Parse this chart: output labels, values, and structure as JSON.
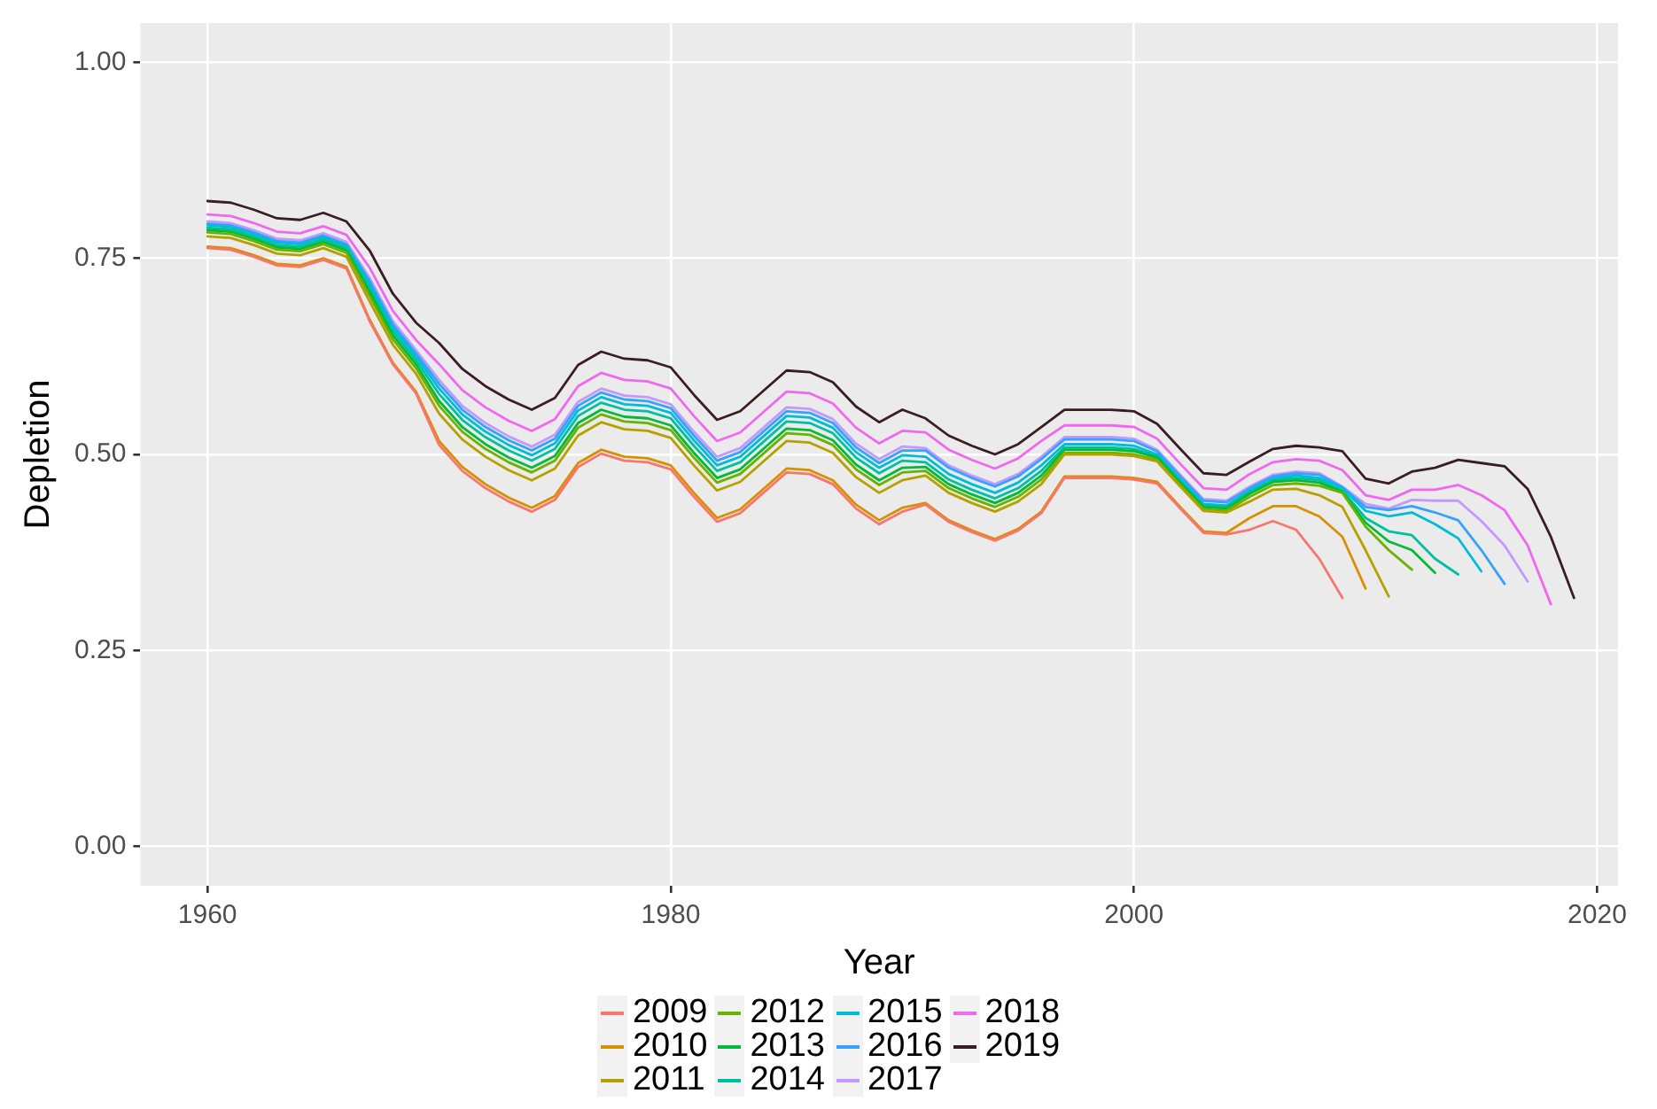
{
  "chart_data": {
    "type": "line",
    "xlabel": "Year",
    "ylabel": "Depletion",
    "x": [
      1960,
      1961,
      1962,
      1963,
      1964,
      1965,
      1966,
      1967,
      1968,
      1969,
      1970,
      1971,
      1972,
      1973,
      1974,
      1975,
      1976,
      1977,
      1978,
      1979,
      1980,
      1981,
      1982,
      1983,
      1984,
      1985,
      1986,
      1987,
      1988,
      1989,
      1990,
      1991,
      1992,
      1993,
      1994,
      1995,
      1996,
      1997,
      1998,
      1999,
      2000,
      2001,
      2002,
      2003,
      2004,
      2005,
      2006,
      2007,
      2008,
      2009,
      2010,
      2011,
      2012,
      2013,
      2014,
      2015,
      2016,
      2017,
      2018,
      2019
    ],
    "xlim": [
      1957.1,
      2020.9
    ],
    "xticks": [
      1960,
      1980,
      2000,
      2020
    ],
    "ylim": [
      -0.05,
      1.05
    ],
    "yticks": [
      {
        "value": 0,
        "label": "0.00"
      },
      {
        "value": 0.25,
        "label": "0.25"
      },
      {
        "value": 0.5,
        "label": "0.50"
      },
      {
        "value": 0.75,
        "label": "0.75"
      },
      {
        "value": 1,
        "label": "1.00"
      }
    ],
    "grid": true,
    "legend": "bottom",
    "marker": "none",
    "line_style": "solid",
    "series": [
      {
        "name": "2009",
        "color": "#f8766d",
        "values": [
          0.763,
          0.761,
          0.752,
          0.741,
          0.739,
          0.748,
          0.737,
          0.67,
          0.615,
          0.578,
          0.512,
          0.479,
          0.457,
          0.44,
          0.427,
          0.442,
          0.484,
          0.501,
          0.492,
          0.49,
          0.481,
          0.446,
          0.414,
          0.425,
          0.451,
          0.477,
          0.475,
          0.462,
          0.431,
          0.411,
          0.427,
          0.436,
          0.414,
          0.401,
          0.39,
          0.403,
          0.425,
          0.47,
          0.47,
          0.47,
          0.468,
          0.463,
          0.431,
          0.4,
          0.398,
          0.404,
          0.415,
          0.404,
          0.367,
          0.317,
          null,
          null,
          null,
          null,
          null,
          null,
          null,
          null,
          null,
          null
        ]
      },
      {
        "name": "2010",
        "color": "#d89000",
        "values": [
          0.765,
          0.763,
          0.754,
          0.743,
          0.741,
          0.75,
          0.739,
          0.672,
          0.617,
          0.58,
          0.517,
          0.484,
          0.462,
          0.445,
          0.432,
          0.447,
          0.489,
          0.506,
          0.497,
          0.495,
          0.486,
          0.451,
          0.419,
          0.43,
          0.456,
          0.482,
          0.48,
          0.467,
          0.436,
          0.416,
          0.432,
          0.438,
          0.416,
          0.403,
          0.392,
          0.405,
          0.427,
          0.472,
          0.472,
          0.472,
          0.47,
          0.465,
          0.433,
          0.402,
          0.4,
          0.419,
          0.434,
          0.434,
          0.421,
          0.395,
          0.329,
          null,
          null,
          null,
          null,
          null,
          null,
          null,
          null,
          null
        ]
      },
      {
        "name": "2011",
        "color": "#b5a000",
        "values": [
          0.778,
          0.776,
          0.767,
          0.756,
          0.754,
          0.763,
          0.752,
          0.695,
          0.64,
          0.603,
          0.552,
          0.519,
          0.497,
          0.48,
          0.467,
          0.482,
          0.524,
          0.541,
          0.532,
          0.53,
          0.521,
          0.486,
          0.454,
          0.465,
          0.491,
          0.517,
          0.515,
          0.502,
          0.471,
          0.451,
          0.467,
          0.473,
          0.451,
          0.438,
          0.427,
          0.44,
          0.462,
          0.5,
          0.5,
          0.5,
          0.498,
          0.491,
          0.459,
          0.428,
          0.426,
          0.44,
          0.455,
          0.456,
          0.448,
          0.433,
          0.378,
          0.319,
          null,
          null,
          null,
          null,
          null,
          null,
          null,
          null
        ]
      },
      {
        "name": "2012",
        "color": "#6bb100",
        "values": [
          0.783,
          0.781,
          0.772,
          0.761,
          0.759,
          0.768,
          0.757,
          0.702,
          0.647,
          0.61,
          0.562,
          0.529,
          0.507,
          0.49,
          0.477,
          0.492,
          0.534,
          0.551,
          0.542,
          0.54,
          0.531,
          0.496,
          0.464,
          0.475,
          0.501,
          0.527,
          0.525,
          0.512,
          0.481,
          0.461,
          0.477,
          0.479,
          0.457,
          0.444,
          0.433,
          0.446,
          0.468,
          0.502,
          0.502,
          0.502,
          0.5,
          0.493,
          0.461,
          0.43,
          0.428,
          0.446,
          0.461,
          0.463,
          0.46,
          0.451,
          0.408,
          0.378,
          0.353,
          null,
          null,
          null,
          null,
          null,
          null,
          null
        ]
      },
      {
        "name": "2013",
        "color": "#00ba38",
        "values": [
          0.786,
          0.784,
          0.775,
          0.764,
          0.762,
          0.771,
          0.76,
          0.707,
          0.652,
          0.615,
          0.568,
          0.535,
          0.513,
          0.496,
          0.483,
          0.498,
          0.54,
          0.557,
          0.548,
          0.546,
          0.537,
          0.502,
          0.47,
          0.481,
          0.507,
          0.533,
          0.531,
          0.518,
          0.487,
          0.467,
          0.483,
          0.484,
          0.462,
          0.449,
          0.438,
          0.451,
          0.473,
          0.506,
          0.506,
          0.506,
          0.504,
          0.496,
          0.464,
          0.433,
          0.431,
          0.45,
          0.465,
          0.467,
          0.464,
          0.452,
          0.413,
          0.389,
          0.378,
          0.349,
          null,
          null,
          null,
          null,
          null,
          null
        ]
      },
      {
        "name": "2014",
        "color": "#00c0a0",
        "values": [
          0.789,
          0.787,
          0.778,
          0.767,
          0.765,
          0.774,
          0.763,
          0.712,
          0.657,
          0.62,
          0.577,
          0.544,
          0.522,
          0.505,
          0.492,
          0.507,
          0.549,
          0.566,
          0.557,
          0.555,
          0.546,
          0.511,
          0.479,
          0.49,
          0.516,
          0.542,
          0.54,
          0.527,
          0.496,
          0.476,
          0.492,
          0.49,
          0.468,
          0.455,
          0.444,
          0.457,
          0.479,
          0.509,
          0.509,
          0.509,
          0.507,
          0.498,
          0.466,
          0.435,
          0.433,
          0.452,
          0.467,
          0.47,
          0.467,
          0.454,
          0.419,
          0.402,
          0.397,
          0.367,
          0.347,
          null,
          null,
          null,
          null,
          null
        ]
      },
      {
        "name": "2015",
        "color": "#00bcd8",
        "values": [
          0.792,
          0.79,
          0.781,
          0.77,
          0.768,
          0.777,
          0.766,
          0.717,
          0.662,
          0.625,
          0.584,
          0.551,
          0.529,
          0.512,
          0.499,
          0.514,
          0.556,
          0.573,
          0.564,
          0.562,
          0.553,
          0.518,
          0.486,
          0.497,
          0.523,
          0.549,
          0.547,
          0.534,
          0.503,
          0.483,
          0.499,
          0.497,
          0.475,
          0.462,
          0.451,
          0.464,
          0.486,
          0.513,
          0.513,
          0.513,
          0.511,
          0.5,
          0.468,
          0.437,
          0.435,
          0.454,
          0.469,
          0.473,
          0.47,
          0.457,
          0.428,
          0.421,
          0.426,
          0.411,
          0.393,
          0.351,
          null,
          null,
          null,
          null
        ]
      },
      {
        "name": "2016",
        "color": "#35a2ff",
        "values": [
          0.794,
          0.792,
          0.783,
          0.772,
          0.77,
          0.779,
          0.768,
          0.721,
          0.666,
          0.629,
          0.59,
          0.557,
          0.535,
          0.518,
          0.505,
          0.52,
          0.562,
          0.579,
          0.57,
          0.568,
          0.559,
          0.524,
          0.492,
          0.503,
          0.529,
          0.555,
          0.553,
          0.54,
          0.509,
          0.489,
          0.505,
          0.505,
          0.483,
          0.47,
          0.459,
          0.472,
          0.494,
          0.519,
          0.519,
          0.519,
          0.517,
          0.504,
          0.472,
          0.441,
          0.439,
          0.457,
          0.472,
          0.476,
          0.474,
          0.458,
          0.433,
          0.429,
          0.434,
          0.426,
          0.416,
          0.378,
          0.335,
          null,
          null,
          null
        ]
      },
      {
        "name": "2017",
        "color": "#c499ff",
        "values": [
          0.797,
          0.795,
          0.786,
          0.775,
          0.773,
          0.782,
          0.771,
          0.725,
          0.67,
          0.633,
          0.595,
          0.562,
          0.54,
          0.523,
          0.51,
          0.525,
          0.567,
          0.584,
          0.575,
          0.573,
          0.564,
          0.529,
          0.497,
          0.508,
          0.534,
          0.56,
          0.558,
          0.545,
          0.514,
          0.494,
          0.51,
          0.508,
          0.486,
          0.473,
          0.462,
          0.475,
          0.497,
          0.522,
          0.522,
          0.522,
          0.52,
          0.506,
          0.474,
          0.443,
          0.441,
          0.459,
          0.474,
          0.478,
          0.476,
          0.459,
          0.437,
          0.431,
          0.442,
          0.441,
          0.441,
          0.415,
          0.384,
          0.338,
          null,
          null
        ]
      },
      {
        "name": "2018",
        "color": "#f067f0",
        "values": [
          0.806,
          0.804,
          0.795,
          0.784,
          0.782,
          0.791,
          0.78,
          0.738,
          0.683,
          0.646,
          0.615,
          0.582,
          0.56,
          0.543,
          0.53,
          0.545,
          0.587,
          0.604,
          0.595,
          0.593,
          0.584,
          0.549,
          0.517,
          0.528,
          0.554,
          0.58,
          0.578,
          0.565,
          0.534,
          0.514,
          0.53,
          0.528,
          0.506,
          0.493,
          0.482,
          0.495,
          0.517,
          0.537,
          0.537,
          0.537,
          0.535,
          0.52,
          0.488,
          0.457,
          0.455,
          0.475,
          0.49,
          0.494,
          0.492,
          0.48,
          0.448,
          0.442,
          0.455,
          0.455,
          0.461,
          0.448,
          0.429,
          0.384,
          0.309,
          null
        ]
      },
      {
        "name": "2019",
        "color": "#3a1d22",
        "values": [
          0.823,
          0.821,
          0.812,
          0.801,
          0.799,
          0.808,
          0.797,
          0.76,
          0.705,
          0.668,
          0.642,
          0.609,
          0.587,
          0.57,
          0.557,
          0.572,
          0.614,
          0.631,
          0.622,
          0.62,
          0.611,
          0.576,
          0.544,
          0.555,
          0.581,
          0.607,
          0.605,
          0.592,
          0.561,
          0.541,
          0.557,
          0.546,
          0.524,
          0.511,
          0.5,
          0.513,
          0.535,
          0.557,
          0.557,
          0.557,
          0.555,
          0.539,
          0.507,
          0.476,
          0.474,
          0.491,
          0.507,
          0.511,
          0.509,
          0.504,
          0.469,
          0.463,
          0.478,
          0.483,
          0.493,
          0.489,
          0.485,
          0.456,
          0.395,
          0.317
        ]
      }
    ]
  }
}
